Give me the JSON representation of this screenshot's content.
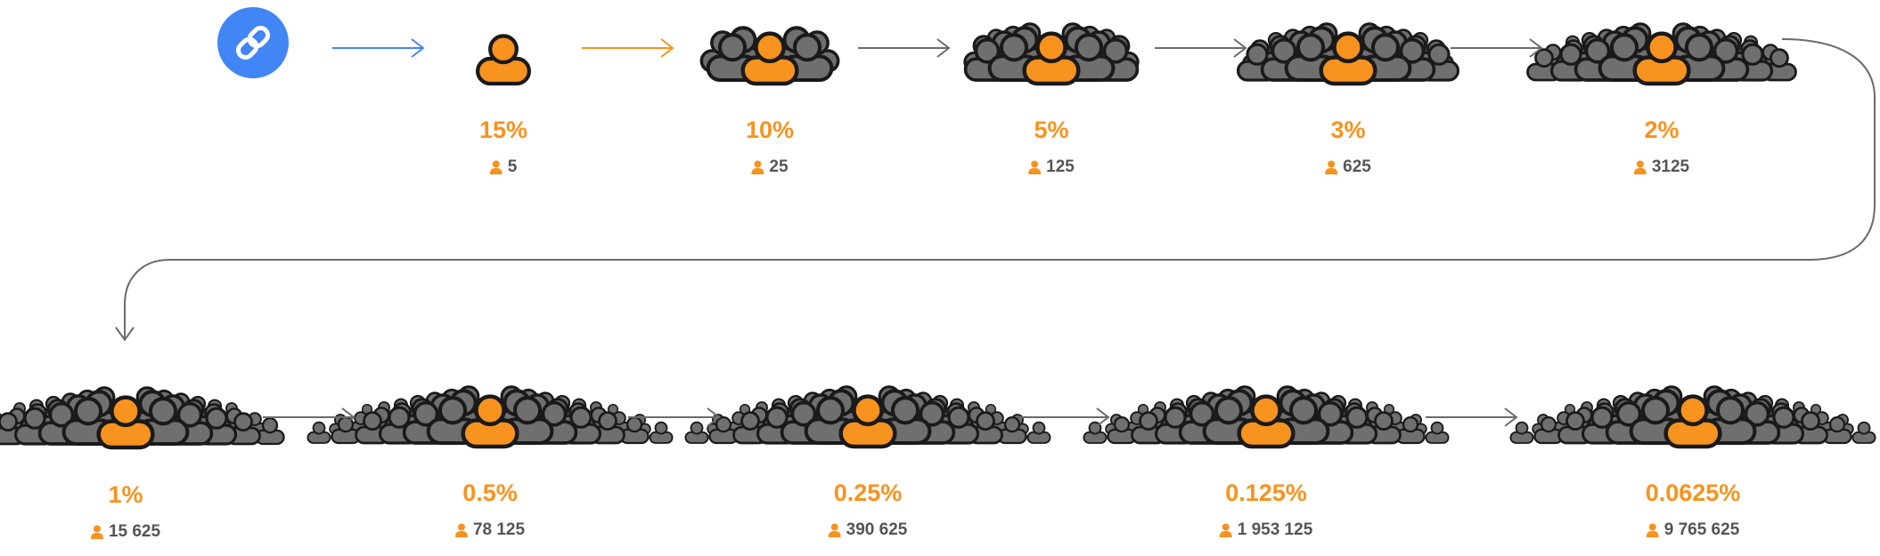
{
  "colors": {
    "accent": "#F7931E",
    "link_blue": "#4285F4",
    "person_gray": "#6F6F6F",
    "outline": "#1A1A1A",
    "arrow_gray": "#6B6B6B",
    "count_gray": "#555555"
  },
  "start": {
    "icon": "link-icon"
  },
  "steps": [
    {
      "percent": "15%",
      "count": "5"
    },
    {
      "percent": "10%",
      "count": "25"
    },
    {
      "percent": "5%",
      "count": "125"
    },
    {
      "percent": "3%",
      "count": "625"
    },
    {
      "percent": "2%",
      "count": "3125"
    },
    {
      "percent": "1%",
      "count": "15 625"
    },
    {
      "percent": "0.5%",
      "count": "78 125"
    },
    {
      "percent": "0.25%",
      "count": "390 625"
    },
    {
      "percent": "0.125%",
      "count": "1 953 125"
    },
    {
      "percent": "0.0625%",
      "count": "9 765 625"
    }
  ]
}
